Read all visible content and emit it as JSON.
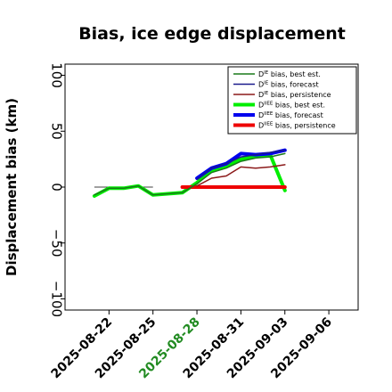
{
  "chart_data": {
    "type": "line",
    "title": "Bias, ice edge displacement",
    "xlabel": "",
    "ylabel": "Displacement bias (km)",
    "ylim": [
      -110,
      110
    ],
    "xlim": [
      "2025-08-19",
      "2025-09-08"
    ],
    "y_ticks": [
      -100,
      -50,
      0,
      50,
      100
    ],
    "y_tick_labels": [
      "−100",
      "−50",
      "0",
      "50",
      "100"
    ],
    "x_ticks": [
      "2025-08-22",
      "2025-08-25",
      "2025-08-28",
      "2025-08-31",
      "2025-09-03",
      "2025-09-06"
    ],
    "x_tick_labels": [
      "2025-08-22",
      "2025-08-25",
      "2025-08-28",
      "2025-08-31",
      "2025-09-03",
      "2025-09-06"
    ],
    "x_tick_colors": [
      "#000000",
      "#000000",
      "#228B22",
      "#000000",
      "#000000",
      "#000000"
    ],
    "grid": false,
    "legend_position": "top-right",
    "zero_line": {
      "y": 0,
      "x": [
        "2025-08-21",
        "2025-08-25"
      ],
      "color": "#404040"
    },
    "series": [
      {
        "name": "D^IE bias, best est.",
        "legend_main": "D",
        "legend_sup": "IE",
        "legend_rest": " bias, best est.",
        "color": "#1a7a1a",
        "width": "thin",
        "x": [
          "2025-08-21",
          "2025-08-22",
          "2025-08-23",
          "2025-08-24",
          "2025-08-25",
          "2025-08-27",
          "2025-08-28",
          "2025-08-29",
          "2025-08-30",
          "2025-08-31",
          "2025-09-01",
          "2025-09-02",
          "2025-09-03"
        ],
        "y": [
          -7,
          -1,
          -1,
          1,
          -7,
          -5,
          3,
          13,
          17,
          23,
          26,
          27,
          30
        ]
      },
      {
        "name": "D^IE bias, forecast",
        "legend_main": "D",
        "legend_sup": "IE",
        "legend_rest": " bias, forecast",
        "color": "#1a1a8c",
        "width": "thin",
        "x": [
          "2025-08-28",
          "2025-08-29",
          "2025-08-30",
          "2025-08-31",
          "2025-09-01",
          "2025-09-02",
          "2025-09-03"
        ],
        "y": [
          7,
          17,
          21,
          27,
          29,
          31,
          33
        ]
      },
      {
        "name": "D^IE bias, persistence",
        "legend_main": "D",
        "legend_sup": "IE",
        "legend_rest": " bias, persistence",
        "color": "#8b1a1a",
        "width": "thin",
        "x": [
          "2025-08-28",
          "2025-08-29",
          "2025-08-30",
          "2025-08-31",
          "2025-09-01",
          "2025-09-02",
          "2025-09-03"
        ],
        "y": [
          1,
          8,
          10,
          18,
          17,
          18,
          20
        ]
      },
      {
        "name": "D^IIEE bias, best est.",
        "legend_main": "D",
        "legend_sup": "IIEE",
        "legend_rest": " bias, best est.",
        "color": "#00ee00",
        "width": "thick",
        "x": [
          "2025-08-21",
          "2025-08-22",
          "2025-08-23",
          "2025-08-24",
          "2025-08-25",
          "2025-08-27",
          "2025-08-28",
          "2025-08-29",
          "2025-08-30",
          "2025-08-31",
          "2025-09-01",
          "2025-09-02",
          "2025-09-03"
        ],
        "y": [
          -8,
          -1,
          -1,
          1,
          -7,
          -5,
          4,
          15,
          19,
          25,
          28,
          29,
          -3
        ]
      },
      {
        "name": "D^IIEE bias, forecast",
        "legend_main": "D",
        "legend_sup": "IIEE",
        "legend_rest": " bias, forecast",
        "color": "#0000ee",
        "width": "thick",
        "x": [
          "2025-08-28",
          "2025-08-29",
          "2025-08-30",
          "2025-08-31",
          "2025-09-01",
          "2025-09-02",
          "2025-09-03"
        ],
        "y": [
          8,
          17,
          21,
          30,
          29,
          30,
          33
        ]
      },
      {
        "name": "D^IIEE bias, persistence",
        "legend_main": "D",
        "legend_sup": "IIEE",
        "legend_rest": " bias, persistence",
        "color": "#ee0000",
        "width": "thick",
        "x": [
          "2025-08-27",
          "2025-08-28",
          "2025-08-29",
          "2025-08-30",
          "2025-08-31",
          "2025-09-01",
          "2025-09-02",
          "2025-09-03"
        ],
        "y": [
          0,
          0,
          0,
          0,
          0,
          0,
          0,
          0
        ]
      }
    ]
  }
}
